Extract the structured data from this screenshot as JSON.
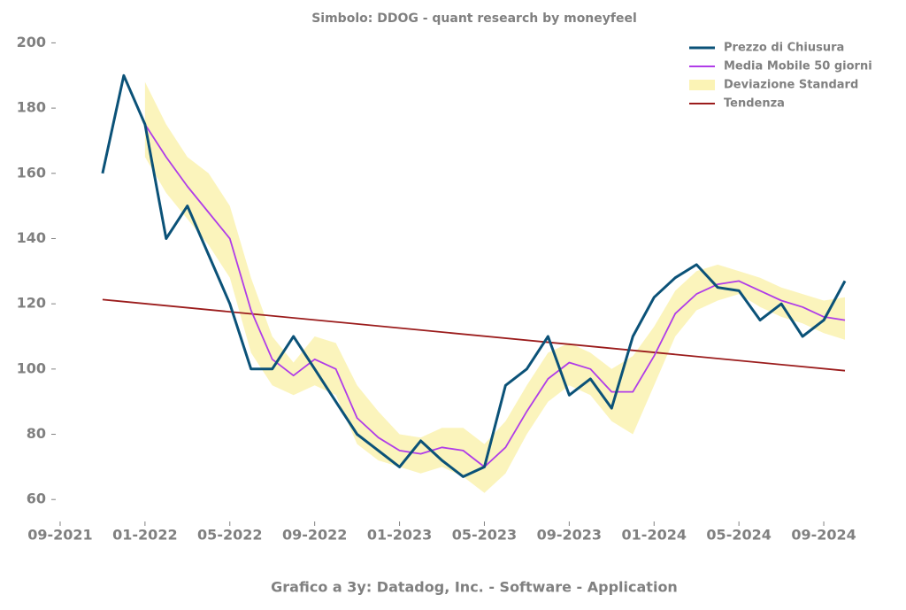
{
  "chart_data": {
    "type": "line",
    "title": "Simbolo: DDOG - quant research by moneyfeel",
    "x_label": "Grafico a 3y: Datadog, Inc. - Software - Application",
    "x": [
      "11-2021",
      "12-2021",
      "01-2022",
      "02-2022",
      "03-2022",
      "04-2022",
      "05-2022",
      "06-2022",
      "07-2022",
      "08-2022",
      "09-2022",
      "10-2022",
      "11-2022",
      "12-2022",
      "01-2023",
      "02-2023",
      "03-2023",
      "04-2023",
      "05-2023",
      "06-2023",
      "07-2023",
      "08-2023",
      "09-2023",
      "10-2023",
      "11-2023",
      "12-2023",
      "01-2024",
      "02-2024",
      "03-2024",
      "04-2024",
      "05-2024",
      "06-2024",
      "07-2024",
      "08-2024",
      "09-2024",
      "10-2024"
    ],
    "series": [
      {
        "name": "Prezzo di Chiusura",
        "color": "#0b5278",
        "values": [
          160,
          190,
          175,
          140,
          150,
          135,
          120,
          100,
          100,
          110,
          100,
          90,
          80,
          75,
          70,
          78,
          72,
          67,
          70,
          95,
          100,
          110,
          92,
          97,
          88,
          110,
          122,
          128,
          132,
          125,
          124,
          115,
          120,
          110,
          115,
          127
        ]
      },
      {
        "name": "Media Mobile 50 giorni",
        "color": "#b03ce8",
        "values": [
          null,
          null,
          175,
          165,
          156,
          148,
          140,
          118,
          103,
          98,
          103,
          100,
          85,
          79,
          75,
          74,
          76,
          75,
          70,
          76,
          87,
          97,
          102,
          100,
          93,
          93,
          104,
          117,
          123,
          126,
          127,
          124,
          121,
          119,
          116,
          115
        ]
      },
      {
        "name": "Deviazione Standard",
        "color": "#fbf3b5",
        "high": [
          null,
          null,
          188,
          175,
          165,
          160,
          150,
          128,
          110,
          102,
          110,
          108,
          95,
          87,
          80,
          79,
          82,
          82,
          77,
          84,
          95,
          105,
          108,
          105,
          100,
          104,
          113,
          124,
          130,
          132,
          130,
          128,
          125,
          123,
          121,
          122
        ],
        "low": [
          null,
          null,
          165,
          154,
          146,
          138,
          128,
          105,
          95,
          92,
          95,
          92,
          77,
          72,
          70,
          68,
          70,
          67,
          62,
          68,
          80,
          90,
          95,
          92,
          84,
          80,
          95,
          110,
          118,
          121,
          123,
          119,
          116,
          114,
          111,
          109
        ]
      },
      {
        "name": "Tendenza",
        "color": "#9b1c1c",
        "x": [
          "11-2021",
          "10-2024"
        ],
        "values": [
          121.3,
          99.5
        ]
      }
    ],
    "xlim": [
      "08-2021",
      "11-2024"
    ],
    "xticks": [
      "09-2021",
      "01-2022",
      "05-2022",
      "09-2022",
      "01-2023",
      "05-2023",
      "09-2023",
      "01-2024",
      "05-2024",
      "09-2024"
    ],
    "ylim": [
      53,
      205
    ],
    "yticks": [
      60,
      80,
      100,
      120,
      140,
      160,
      180,
      200
    ],
    "legend": "upper right"
  }
}
